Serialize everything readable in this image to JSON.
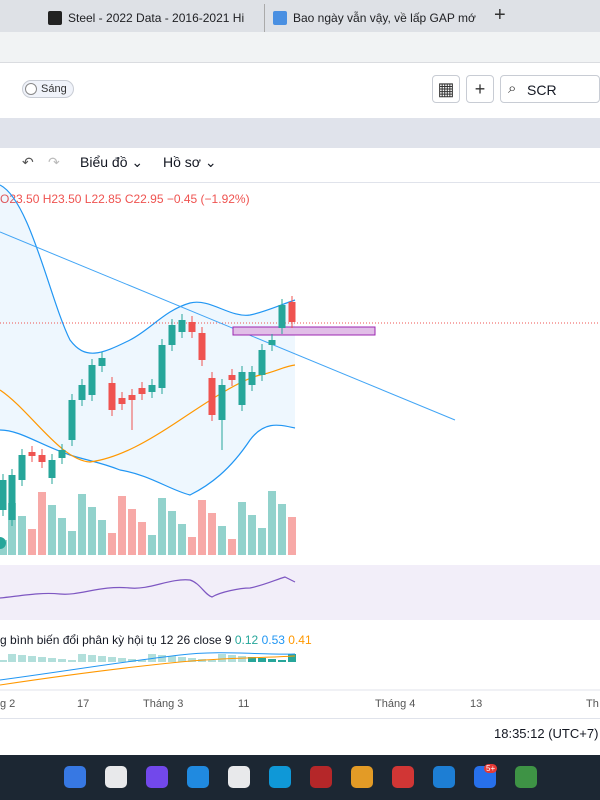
{
  "tabs": [
    {
      "title": "Steel - 2022 Data - 2016-2021 Hi"
    },
    {
      "title": "Bao ngày vẫn vậy, về lấp GAP mớ"
    }
  ],
  "new_tab": "+",
  "toolbar": {
    "theme": "Sáng",
    "search": "SCR"
  },
  "chart_toolbar": {
    "chart_menu": "Biểu đồ",
    "profile_menu": "Hồ sơ"
  },
  "ohlc": {
    "open": "O23.50",
    "high": "H23.50",
    "low": "L22.85",
    "close": "C22.95",
    "change": "−0.45 (−1.92%)"
  },
  "macd": {
    "label": "g bình biến đổi phân kỳ hội tụ 12 26 close 9",
    "values": [
      "0.12",
      "0.53",
      "0.41"
    ]
  },
  "x_axis": [
    "g 2",
    "17",
    "Tháng 3",
    "11",
    "Tháng 4",
    "13",
    "Th"
  ],
  "clock": "18:35:12 (UTC+7)",
  "taskbar": {
    "badge": "5+"
  }
}
